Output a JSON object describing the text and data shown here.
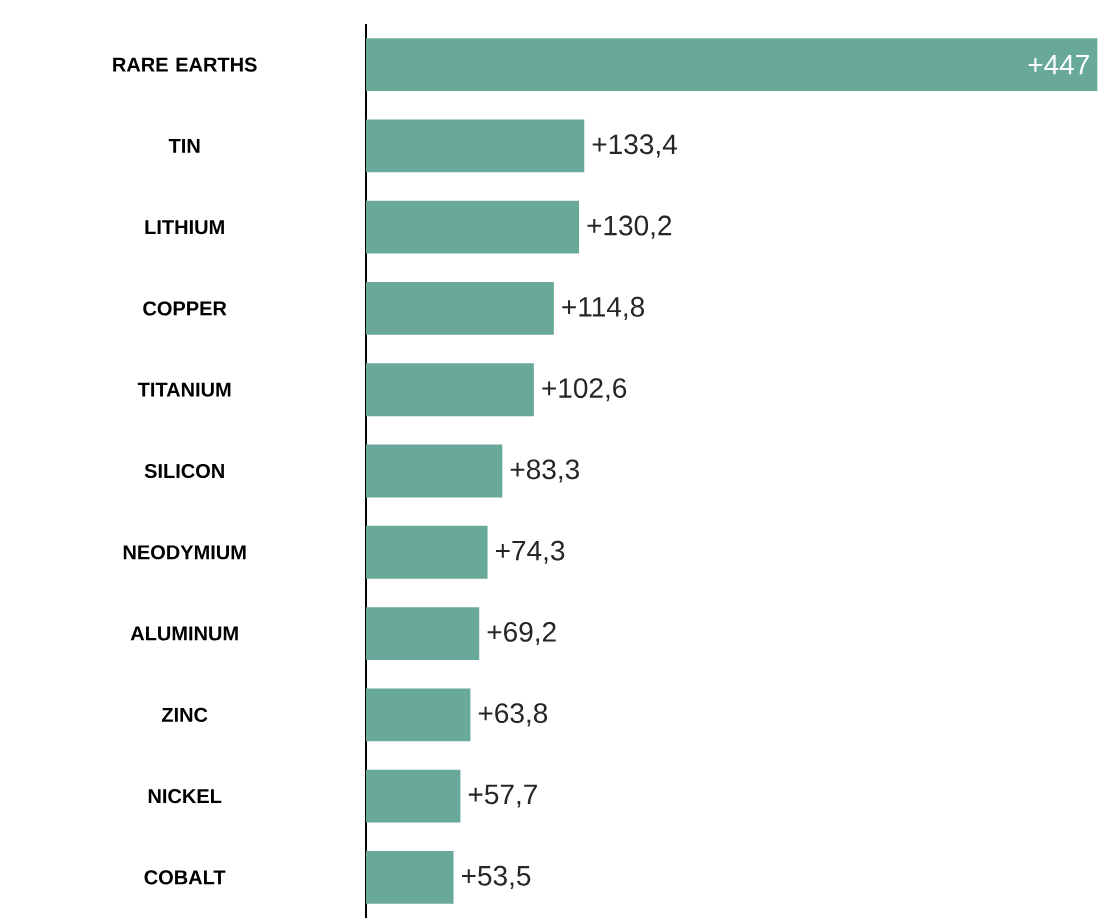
{
  "chart_data": {
    "type": "bar",
    "orientation": "horizontal",
    "color": "#68a99a",
    "categories": [
      "RARE EARTHS",
      "TIN",
      "LITHIUM",
      "COPPER",
      "TITANIUM",
      "SILICON",
      "NEODYMIUM",
      "ALUMINUM",
      "ZINC",
      "NICKEL",
      "COBALT"
    ],
    "values": [
      447,
      133.4,
      130.2,
      114.8,
      102.6,
      83.3,
      74.3,
      69.2,
      63.8,
      57.7,
      53.5
    ],
    "value_labels": [
      "+447",
      "+133,4",
      "+130,2",
      "+114,8",
      "+102,6",
      "+83,3",
      "+74,3",
      "+69,2",
      "+63,8",
      "+57,7",
      "+53,5"
    ]
  }
}
